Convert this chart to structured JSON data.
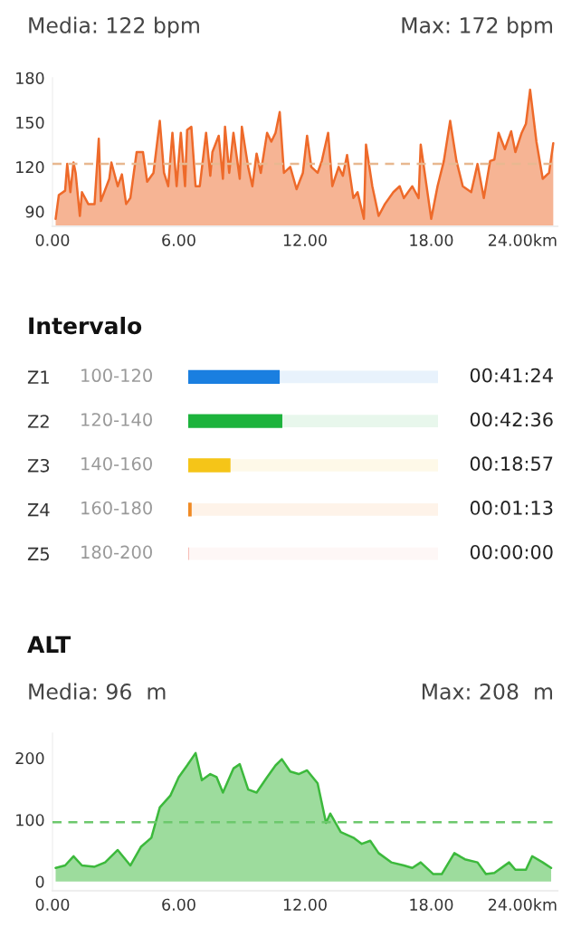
{
  "chart_data": [
    {
      "type": "area",
      "annotations": [
        "Media: 122 bpm",
        "Max: 172 bpm"
      ],
      "x": [
        0.15,
        0.3,
        0.6,
        0.7,
        0.85,
        1.0,
        1.1,
        1.3,
        1.4,
        1.7,
        2.0,
        2.2,
        2.3,
        2.7,
        2.8,
        3.1,
        3.3,
        3.5,
        3.7,
        4.0,
        4.3,
        4.5,
        4.8,
        5.1,
        5.3,
        5.5,
        5.7,
        5.9,
        6.1,
        6.3,
        6.4,
        6.6,
        6.8,
        7.0,
        7.3,
        7.5,
        7.6,
        7.9,
        8.1,
        8.2,
        8.4,
        8.6,
        8.9,
        9.0,
        9.3,
        9.5,
        9.7,
        9.9,
        10.2,
        10.4,
        10.6,
        10.8,
        11.0,
        11.3,
        11.6,
        11.9,
        12.1,
        12.3,
        12.6,
        12.8,
        13.1,
        13.3,
        13.6,
        13.8,
        14.0,
        14.3,
        14.5,
        14.8,
        14.9,
        15.2,
        15.5,
        15.8,
        16.2,
        16.5,
        16.7,
        17.1,
        17.4,
        17.5,
        17.9,
        18.0,
        18.3,
        18.6,
        18.9,
        19.2,
        19.5,
        19.9,
        20.2,
        20.5,
        20.8,
        21.0,
        21.2,
        21.5,
        21.8,
        22.0,
        22.3,
        22.5,
        22.7,
        23.0,
        23.3,
        23.6,
        23.8
      ],
      "series": [
        {
          "color": "#ee6a2a",
          "values": [
            85,
            101,
            104,
            122,
            103,
            123,
            116,
            87,
            103,
            95,
            95,
            139,
            97,
            112,
            123,
            107,
            115,
            95,
            99,
            130,
            130,
            110,
            116,
            151,
            116,
            107,
            143,
            107,
            143,
            107,
            145,
            147,
            107,
            107,
            143,
            114,
            130,
            141,
            112,
            147,
            116,
            143,
            112,
            147,
            120,
            107,
            129,
            116,
            143,
            137,
            143,
            157,
            116,
            120,
            105,
            116,
            141,
            120,
            116,
            124,
            143,
            107,
            120,
            114,
            128,
            99,
            103,
            85,
            135,
            107,
            87,
            95,
            103,
            107,
            99,
            107,
            99,
            135,
            95,
            85,
            107,
            124,
            151,
            124,
            107,
            103,
            122,
            99,
            124,
            125,
            143,
            132,
            144,
            130,
            143,
            149,
            172,
            137,
            112,
            116,
            136
          ]
        }
      ],
      "xlim": [
        0,
        24
      ],
      "xticks": [
        {
          "value": 0,
          "label": "0.00"
        },
        {
          "value": 6,
          "label": "6.00"
        },
        {
          "value": 12,
          "label": "12.00"
        },
        {
          "value": 18,
          "label": "18.00"
        },
        {
          "value": 24,
          "label": "24.00km"
        }
      ],
      "ylim": [
        80,
        180
      ],
      "yticks": [
        90,
        120,
        150,
        180
      ],
      "ref_lines": [
        {
          "axis": "y",
          "value": 122,
          "color": "#e8b890",
          "line_style": "dashed"
        }
      ]
    },
    {
      "type": "bar",
      "orientation": "horizontal",
      "title": "Intervalo",
      "categories": [
        "Z1",
        "Z2",
        "Z3",
        "Z4",
        "Z5"
      ],
      "values": [
        41.4,
        42.6,
        18.95,
        1.22,
        0
      ],
      "colors": [
        "#1a7fe0",
        "#1db33c",
        "#f5c518",
        "#f08a24",
        "#f5b0a8"
      ],
      "value_labels": [
        "00:41:24",
        "00:42:36",
        "00:18:57",
        "00:01:13",
        "00:00:00"
      ],
      "annotations": [
        "100-120",
        "120-140",
        "140-160",
        "160-180",
        "180-200"
      ],
      "xlim": [
        0,
        114
      ],
      "tick_labels": "y"
    },
    {
      "type": "area",
      "title": "ALT",
      "annotations": [
        "Media: 96  m",
        "Max: 208  m"
      ],
      "x": [
        0.15,
        0.6,
        1.0,
        1.4,
        2.0,
        2.5,
        3.1,
        3.7,
        4.2,
        4.7,
        5.1,
        5.6,
        6.0,
        6.4,
        6.8,
        7.1,
        7.5,
        7.8,
        8.1,
        8.6,
        8.9,
        9.3,
        9.7,
        10.2,
        10.6,
        10.9,
        11.3,
        11.7,
        12.1,
        12.6,
        13.0,
        13.2,
        13.7,
        14.3,
        14.7,
        15.1,
        15.5,
        16.1,
        16.7,
        17.1,
        17.5,
        18.1,
        18.5,
        19.1,
        19.6,
        20.2,
        20.6,
        21.0,
        21.7,
        22.0,
        22.5,
        22.8,
        23.3,
        23.7
      ],
      "series": [
        {
          "color": "#3cb93c",
          "values": [
            22,
            26,
            41,
            26,
            24,
            31,
            51,
            26,
            56,
            71,
            120,
            139,
            169,
            188,
            208,
            164,
            174,
            169,
            144,
            183,
            190,
            149,
            144,
            169,
            188,
            198,
            178,
            174,
            180,
            159,
            95,
            110,
            80,
            71,
            61,
            66,
            46,
            31,
            26,
            22,
            31,
            12,
            12,
            46,
            36,
            31,
            12,
            14,
            31,
            19,
            19,
            41,
            31,
            22
          ]
        }
      ],
      "xlim": [
        0,
        24
      ],
      "xticks": [
        {
          "value": 0,
          "label": "0.00"
        },
        {
          "value": 6,
          "label": "6.00"
        },
        {
          "value": 12,
          "label": "12.00"
        },
        {
          "value": 18,
          "label": "18.00"
        },
        {
          "value": 24,
          "label": "24.00km"
        }
      ],
      "ylim": [
        -15,
        240
      ],
      "yticks": [
        0,
        100,
        200
      ],
      "ref_lines": [
        {
          "axis": "y",
          "value": 96,
          "color": "#6cc86c",
          "line_style": "dashed"
        }
      ]
    }
  ]
}
